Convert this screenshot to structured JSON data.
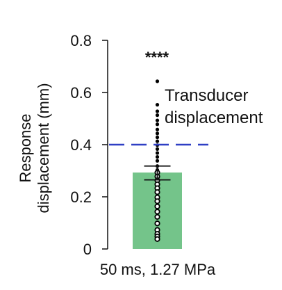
{
  "chart_data": {
    "type": "bar",
    "categories": [
      "50 ms, 1.27 MPa"
    ],
    "values": [
      0.293
    ],
    "error": {
      "lower": 0.265,
      "upper": 0.318
    },
    "points": [
      0.643,
      0.553,
      0.528,
      0.513,
      0.493,
      0.478,
      0.458,
      0.443,
      0.428,
      0.413,
      0.398,
      0.383,
      0.368,
      0.353,
      0.338,
      0.318,
      0.303,
      0.293,
      0.278,
      0.263,
      0.248,
      0.233,
      0.218,
      0.198,
      0.183,
      0.163,
      0.143,
      0.123,
      0.098,
      0.073,
      0.058,
      0.048,
      0.038
    ],
    "reference_line": {
      "value": 0.4,
      "label": "Transducer displacement",
      "color": "#2f3fc4"
    },
    "significance": "****",
    "ylabel": "Response displacement (mm)",
    "xlabel": "",
    "ylim": [
      0,
      0.8
    ],
    "yticks": [
      "0",
      "0.2",
      "0.4",
      "0.6",
      "0.8"
    ],
    "bar_color": "#74c48a",
    "point_color": "#000000"
  }
}
